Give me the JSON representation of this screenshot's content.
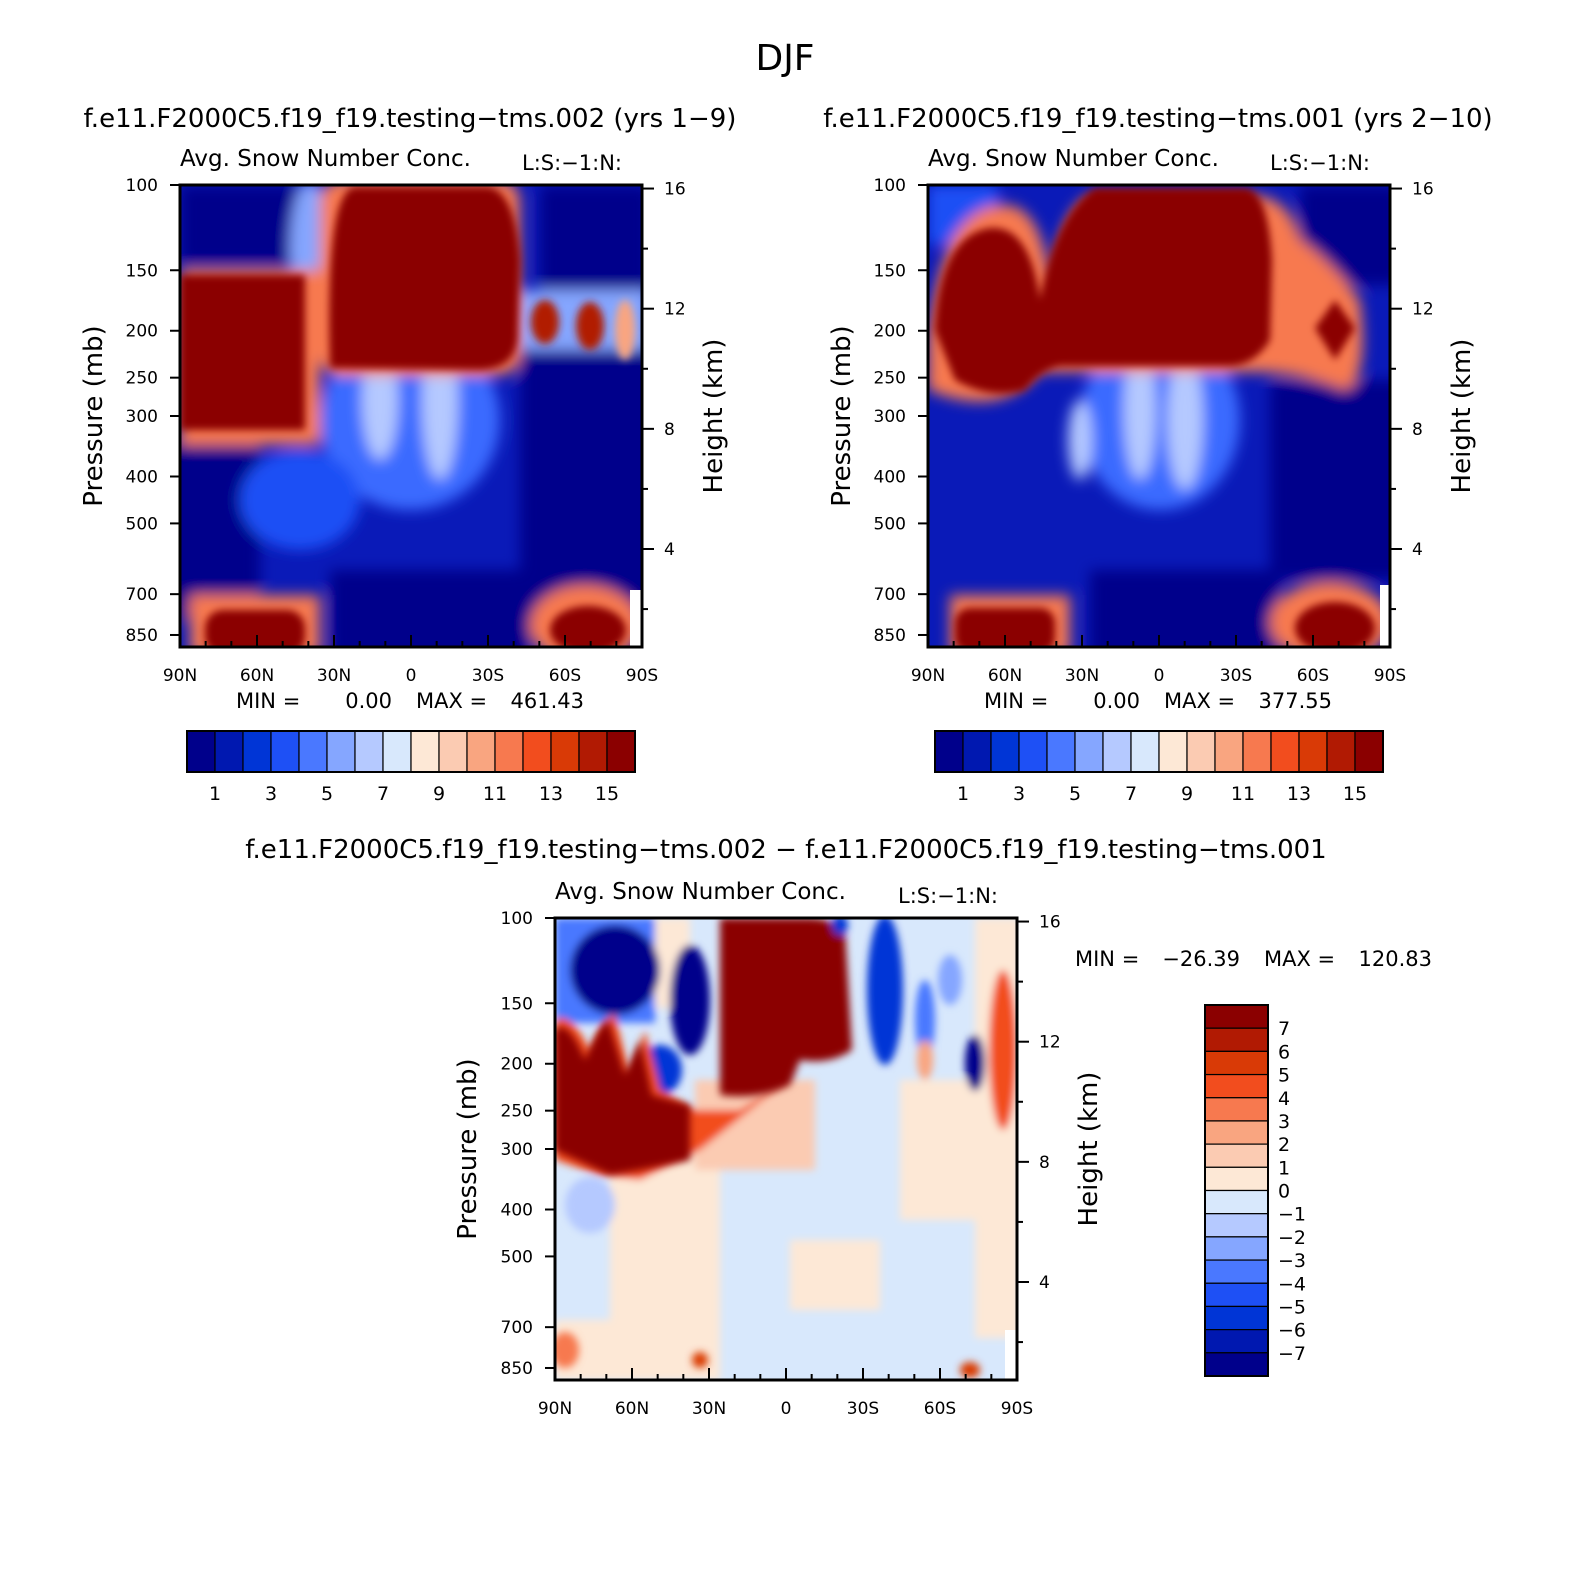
{
  "page_title": "DJF",
  "colors": {
    "seq_levels": [
      "#00008b",
      "#0018b0",
      "#0035d6",
      "#1e50f5",
      "#4a78ff",
      "#85a6ff",
      "#b5c9ff",
      "#d8e8fc",
      "#fde8d6",
      "#fbcbb2",
      "#f9a580",
      "#f7794f",
      "#f24d1e",
      "#d93a06",
      "#b11a03",
      "#8b0000"
    ],
    "diff_levels": [
      "#00008b",
      "#0018b0",
      "#0035d6",
      "#1e50f5",
      "#4a78ff",
      "#85a6ff",
      "#b5c9ff",
      "#d8e8fc",
      "#fde8d6",
      "#fbcbb2",
      "#f9a580",
      "#f7794f",
      "#f24d1e",
      "#d93a06",
      "#b11a03",
      "#8b0000"
    ]
  },
  "panels": [
    {
      "case_title": "f.e11.F2000C5.f19_f19.testing−tms.002 (yrs 1−9)",
      "var_title": "Avg. Snow Number Conc.",
      "var_units": "L:S:−1:N:",
      "ylabel": "Pressure (mb)",
      "y2label": "Height (km)",
      "min_label": "MIN =",
      "min_value": "0.00",
      "max_label": "MAX =",
      "max_value": "461.43"
    },
    {
      "case_title": "f.e11.F2000C5.f19_f19.testing−tms.001 (yrs 2−10)",
      "var_title": "Avg. Snow Number Conc.",
      "var_units": "L:S:−1:N:",
      "ylabel": "Pressure (mb)",
      "y2label": "Height (km)",
      "min_label": "MIN =",
      "min_value": "0.00",
      "max_label": "MAX =",
      "max_value": "377.55"
    },
    {
      "case_title": "f.e11.F2000C5.f19_f19.testing−tms.002 − f.e11.F2000C5.f19_f19.testing−tms.001",
      "var_title": "Avg. Snow Number Conc.",
      "var_units": "L:S:−1:N:",
      "ylabel": "Pressure (mb)",
      "y2label": "Height (km)",
      "min_label": "MIN =",
      "min_value": "−26.39",
      "max_label": "MAX =",
      "max_value": "120.83"
    }
  ],
  "chart_data": [
    {
      "type": "contour",
      "title": "Avg. Snow Number Conc.",
      "x": {
        "label": "",
        "ticks": [
          "90N",
          "60N",
          "30N",
          "0",
          "30S",
          "60S",
          "90S"
        ],
        "range": [
          90,
          -90
        ]
      },
      "y": {
        "label": "Pressure (mb)",
        "ticks": [
          100,
          150,
          200,
          250,
          300,
          400,
          500,
          700,
          850
        ],
        "range": [
          100,
          900
        ],
        "scale": "log"
      },
      "y2": {
        "label": "Height (km)",
        "ticks": [
          16,
          12,
          8,
          4
        ]
      },
      "colorbar": {
        "tick_labels": [
          "1",
          "3",
          "5",
          "7",
          "9",
          "11",
          "13",
          "15"
        ],
        "n_levels": 16
      },
      "min": 0.0,
      "max": 461.43
    },
    {
      "type": "contour",
      "title": "Avg. Snow Number Conc.",
      "x": {
        "label": "",
        "ticks": [
          "90N",
          "60N",
          "30N",
          "0",
          "30S",
          "60S",
          "90S"
        ],
        "range": [
          90,
          -90
        ]
      },
      "y": {
        "label": "Pressure (mb)",
        "ticks": [
          100,
          150,
          200,
          250,
          300,
          400,
          500,
          700,
          850
        ],
        "range": [
          100,
          900
        ],
        "scale": "log"
      },
      "y2": {
        "label": "Height (km)",
        "ticks": [
          16,
          12,
          8,
          4
        ]
      },
      "colorbar": {
        "tick_labels": [
          "1",
          "3",
          "5",
          "7",
          "9",
          "11",
          "13",
          "15"
        ],
        "n_levels": 16
      },
      "min": 0.0,
      "max": 377.55
    },
    {
      "type": "contour",
      "title": "Avg. Snow Number Conc.",
      "x": {
        "label": "",
        "ticks": [
          "90N",
          "60N",
          "30N",
          "0",
          "30S",
          "60S",
          "90S"
        ],
        "range": [
          90,
          -90
        ]
      },
      "y": {
        "label": "Pressure (mb)",
        "ticks": [
          100,
          150,
          200,
          250,
          300,
          400,
          500,
          700,
          850
        ],
        "range": [
          100,
          900
        ],
        "scale": "log"
      },
      "y2": {
        "label": "Height (km)",
        "ticks": [
          16,
          12,
          8,
          4
        ]
      },
      "colorbar": {
        "tick_labels": [
          "7",
          "6",
          "5",
          "4",
          "3",
          "2",
          "1",
          "0",
          "−1",
          "−2",
          "−3",
          "−4",
          "−5",
          "−6",
          "−7"
        ],
        "n_levels": 16,
        "orientation": "vertical"
      },
      "min": -26.39,
      "max": 120.83
    }
  ]
}
